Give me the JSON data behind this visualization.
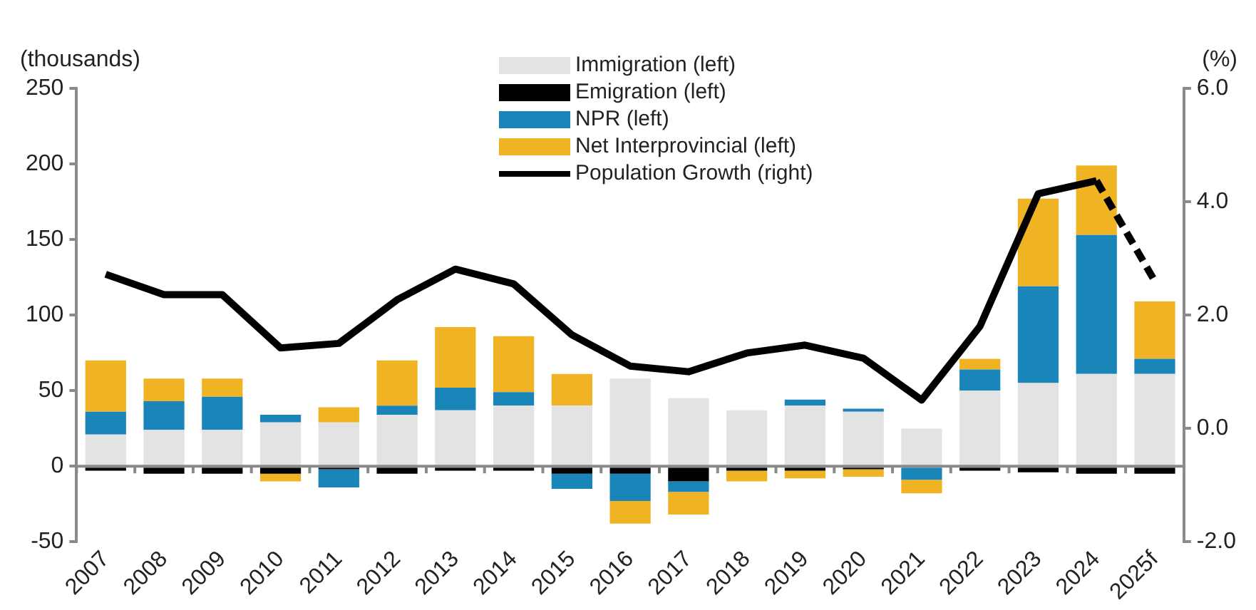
{
  "chart_data": {
    "type": "bar",
    "stacked": true,
    "ylabel": "(thousands)",
    "y2label": "(%)",
    "legend": "top",
    "categories": [
      "2007",
      "2008",
      "2009",
      "2010",
      "2011",
      "2012",
      "2013",
      "2014",
      "2015",
      "2016",
      "2017",
      "2018",
      "2019",
      "2020",
      "2021",
      "2022",
      "2023",
      "2024",
      "2025f"
    ],
    "ylim": [
      -50,
      250
    ],
    "yticks": [
      -50,
      0,
      50,
      100,
      150,
      200,
      250
    ],
    "y2lim": [
      -2,
      6
    ],
    "y2ticks": [
      {
        "value": -2,
        "label": "-2.0"
      },
      {
        "value": 0,
        "label": "0.0"
      },
      {
        "value": 2,
        "label": "2.0"
      },
      {
        "value": 4,
        "label": "4.0"
      },
      {
        "value": 6,
        "label": "6.0"
      }
    ],
    "series": [
      {
        "name": "Immigration (left)",
        "color": "#e3e3e3",
        "values": [
          21,
          24,
          24,
          29,
          29,
          34,
          37,
          40,
          40,
          58,
          45,
          37,
          40,
          36,
          25,
          50,
          55,
          61,
          61
        ]
      },
      {
        "name": "Emigration (left)",
        "color": "#000000",
        "values": [
          -3,
          -5,
          -5,
          -5,
          -2,
          -5,
          -3,
          -3,
          -5,
          -5,
          -10,
          -3,
          -3,
          -2,
          null,
          -3,
          -4,
          -5,
          -5
        ]
      },
      {
        "name": "NPR (left)",
        "color": "#1a85b8",
        "values": [
          15,
          19,
          22,
          5,
          -12,
          6,
          15,
          9,
          -10,
          -18,
          -7,
          null,
          4,
          2,
          -9,
          14,
          64,
          92,
          10
        ]
      },
      {
        "name": "Net Interprovincial (left)",
        "color": "#f0b323",
        "values": [
          34,
          15,
          12,
          -5,
          10,
          30,
          40,
          37,
          21,
          -15,
          -15,
          -7,
          -5,
          -5,
          -9,
          7,
          58,
          46,
          38
        ]
      },
      {
        "name": "Population Growth (right)",
        "type": "line",
        "axis": "y2",
        "color": "#000000",
        "line_style": "solid",
        "marker": "none",
        "values": [
          2.72,
          2.36,
          2.36,
          1.42,
          1.5,
          2.27,
          2.81,
          2.55,
          1.65,
          1.1,
          1.0,
          1.33,
          1.47,
          1.24,
          0.5,
          1.8,
          4.14,
          4.37,
          null
        ]
      },
      {
        "type": "line",
        "axis": "y2",
        "color": "#000000",
        "line_style": "dashed",
        "marker": "none",
        "values": [
          null,
          null,
          null,
          null,
          null,
          null,
          null,
          null,
          null,
          null,
          null,
          null,
          null,
          null,
          null,
          null,
          null,
          4.37,
          2.6
        ]
      }
    ]
  }
}
